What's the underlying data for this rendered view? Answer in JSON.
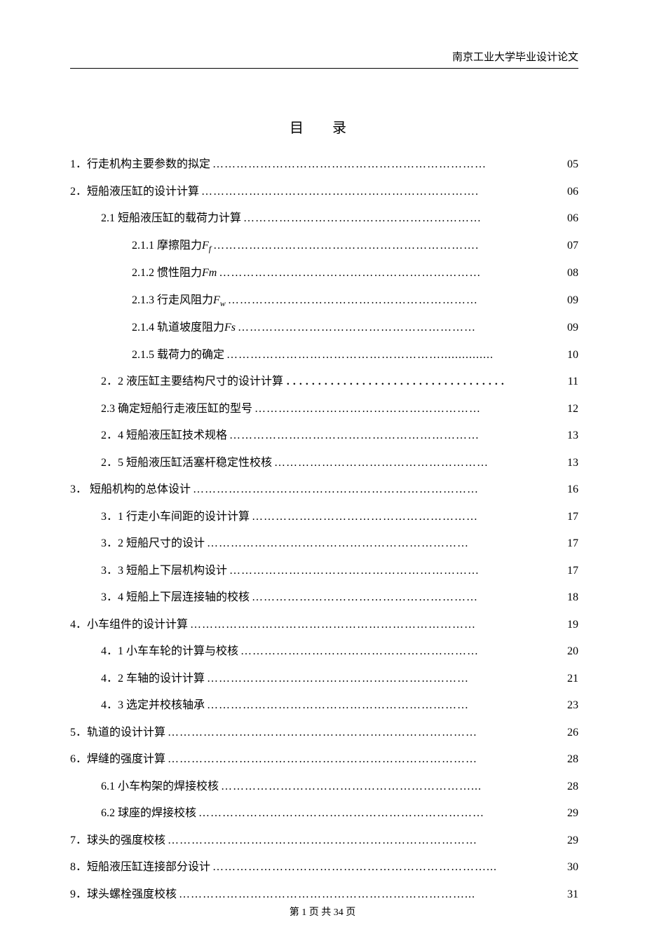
{
  "header": {
    "institution": "南京工业大学毕业设计论文"
  },
  "title": "目 录",
  "footer": {
    "text": "第 1 页 共 34 页"
  },
  "toc": {
    "items": [
      {
        "indent": 0,
        "label": "1．行走机构主要参数的拟定",
        "page": "05",
        "dots": "……………………………………………………………"
      },
      {
        "indent": 0,
        "label": "2．短船液压缸的设计计算",
        "page": "06",
        "dots": "……………………………………………………………."
      },
      {
        "indent": 1,
        "label": "2.1 短船液压缸的载荷力计算",
        "page": "06",
        "dots": "……………………………………………………"
      },
      {
        "indent": 2,
        "label_html": "2.1.1 摩擦阻力<span class='italic'>F</span><span class='sub italic'>f</span>",
        "page": "07",
        "dots": "…………………………………………………………."
      },
      {
        "indent": 2,
        "label_html": "2.1.2 惯性阻力<span class='italic'>Fm</span>",
        "page": "08",
        "dots": " …………………………………………………………"
      },
      {
        "indent": 2,
        "label_html": "2.1.3 行走风阻力<span class='italic'>F</span><span class='sub italic'>w</span>",
        "page": "09",
        "dots": " ………………………………………………………"
      },
      {
        "indent": 2,
        "label_html": "2.1.4 轨道坡度阻力<span class='italic'>Fs</span>",
        "page": "09",
        "dots": " ……………………………………………………"
      },
      {
        "indent": 2,
        "label": "2.1.5 载荷力的确定",
        "page": "10",
        "dots": " ………………………………………………..............."
      },
      {
        "indent": 1,
        "label": "2．2 液压缸主要结构尺寸的设计计算",
        "page": "11",
        "dots": " ．．．．．．．．．．．．．．．．．．．．．．．．．．．．．．．．．．．"
      },
      {
        "indent": 1,
        "label": "2.3 确定短船行走液压缸的型号",
        "page": "12",
        "dots": " …………………………………………………"
      },
      {
        "indent": 1,
        "label": "2．4 短船液压缸技术规格",
        "page": "13",
        "dots": " ………………………………………………………"
      },
      {
        "indent": 1,
        "label": "2．5 短船液压缸活塞杆稳定性校核",
        "page": "13",
        "dots": " ………………………………………………"
      },
      {
        "indent": 0,
        "label": "3． 短船机构的总体设计",
        "page": "16",
        "dots": " ………………………………………………………………"
      },
      {
        "indent": 1,
        "label": "3．1 行走小车间距的设计计算",
        "page": "17",
        "dots": " …………………………………………………"
      },
      {
        "indent": 1,
        "label": "3．2 短船尺寸的设计",
        "page": "17",
        "dots": " …………………………………………………………"
      },
      {
        "indent": 1,
        "label": "3．3 短船上下层机构设计",
        "page": "17",
        "dots": " ………………………………………………………"
      },
      {
        "indent": 1,
        "label": "3．4 短船上下层连接轴的校核",
        "page": "18",
        "dots": " …………………………………………………"
      },
      {
        "indent": 0,
        "label": "4．小车组件的设计计算",
        "page": "19",
        "dots": " ………………………………………………………………"
      },
      {
        "indent": 1,
        "label": "4．1 小车车轮的计算与校核",
        "page": "20",
        "dots": " ……………………………………………………"
      },
      {
        "indent": 1,
        "label": "4．2 车轴的设计计算",
        "page": "21",
        "dots": "  …………………………………………………………"
      },
      {
        "indent": 1,
        "label": "4．3 选定并校核轴承",
        "page": "23",
        "dots": " …………………………………………………………"
      },
      {
        "indent": 0,
        "label": "5．轨道的设计计算",
        "page": "26",
        "dots": " ……………………………………………………………………"
      },
      {
        "indent": 0,
        "label": "6．焊缝的强度计算",
        "page": "28",
        "dots": " ……………………………………………………………………"
      },
      {
        "indent": 1,
        "label": "6.1 小车构架的焊接校核",
        "page": "28",
        "dots": " ………………………………………………………..."
      },
      {
        "indent": 1,
        "label": "6.2 球座的焊接校核",
        "page": "29",
        "dots": " ………………………………………………………………"
      },
      {
        "indent": 0,
        "label": "7．球头的强度校核",
        "page": "29",
        "dots": " ……………………………………………………………………"
      },
      {
        "indent": 0,
        "label": "8．短船液压缸连接部分设计",
        "page": "30",
        "dots": " ……………………………………………………………..."
      },
      {
        "indent": 0,
        "label": "9．球头螺栓强度校核",
        "page": "31",
        "dots": " ………………………………………………………………..."
      }
    ]
  }
}
